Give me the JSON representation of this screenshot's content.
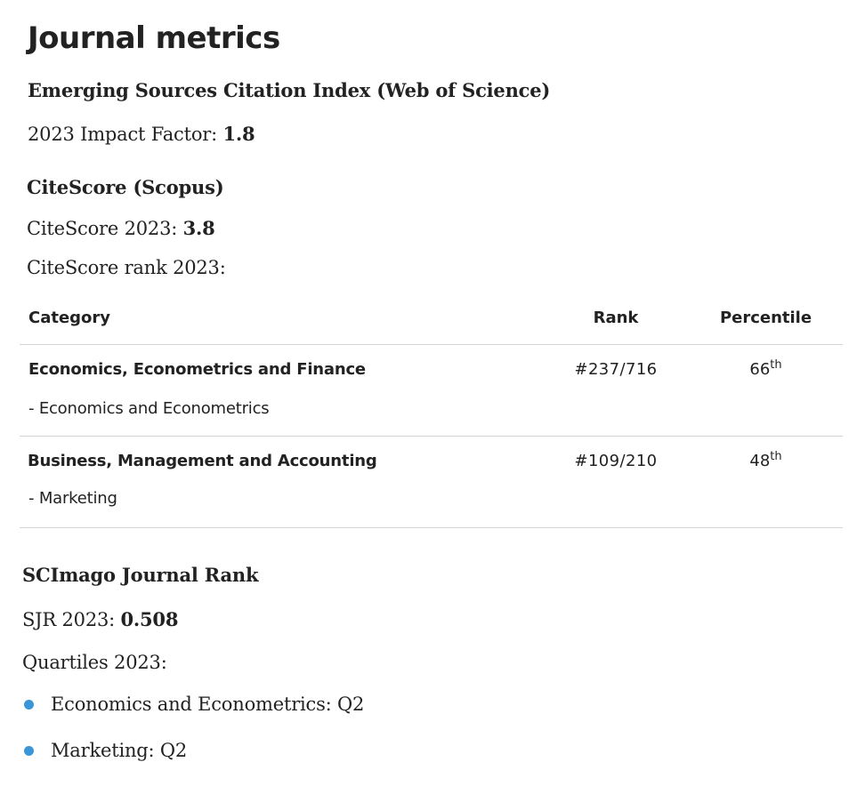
{
  "title": "Journal metrics",
  "esci": {
    "heading": "Emerging Sources Citation Index (Web of Science)",
    "impact_label": "2023 Impact Factor: ",
    "impact_value": "1.8"
  },
  "citescore": {
    "heading": "CiteScore (Scopus)",
    "score_label": "CiteScore 2023: ",
    "score_value": "3.8",
    "rank_label": "CiteScore rank 2023:",
    "table": {
      "headers": {
        "category": "Category",
        "rank": "Rank",
        "percentile": "Percentile"
      },
      "rows": [
        {
          "category": "Economics, Econometrics and Finance",
          "subcategory": "- Economics and Econometrics",
          "rank": "#237/716",
          "percentile": "66",
          "suffix": "th"
        },
        {
          "category": "Business, Management and Accounting",
          "subcategory": "- Marketing",
          "rank": "#109/210",
          "percentile": "48",
          "suffix": "th"
        }
      ]
    }
  },
  "scimago": {
    "heading": "SCImago Journal Rank",
    "sjr_label": "SJR 2023: ",
    "sjr_value": "0.508",
    "quartiles_label": "Quartiles 2023:",
    "quartiles": [
      "Economics and Econometrics: Q2",
      "Marketing: Q2"
    ]
  },
  "colors": {
    "bullet": "#3b96d8",
    "divider": "#d4d4d4",
    "text": "#222222"
  }
}
